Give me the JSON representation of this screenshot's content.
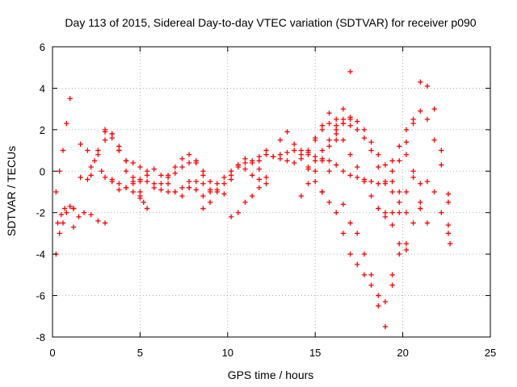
{
  "chart_data": {
    "type": "scatter",
    "title": "Day 113 of 2015, Sidereal Day-to-day VTEC variation (SDTVAR) for receiver p090",
    "xlabel": "GPS time / hours",
    "ylabel": "SDTVAR / TECUs",
    "xlim": [
      0,
      25
    ],
    "ylim": [
      -8,
      6
    ],
    "xticks": [
      "0",
      "5",
      "10",
      "15",
      "20",
      "25"
    ],
    "yticks": [
      "-8",
      "-6",
      "-4",
      "-2",
      "0",
      "2",
      "4",
      "6"
    ],
    "grid": true,
    "legend": "none",
    "marker": "+",
    "color": "#ff0000",
    "series": [
      {
        "x": [
          0.2,
          0.4,
          0.6,
          0.8,
          1.0
        ],
        "y": [
          -1.0,
          0.0,
          1.0,
          2.3,
          3.5
        ]
      },
      {
        "x": [
          0.2,
          0.4,
          0.6,
          0.8,
          1.2
        ],
        "y": [
          -4.0,
          -3.0,
          -2.5,
          -2.0,
          -1.8
        ]
      },
      {
        "x": [
          0.3,
          0.5,
          0.7,
          1.0,
          1.2
        ],
        "y": [
          -2.5,
          -2.1,
          -1.8,
          -1.7,
          -1.8
        ]
      },
      {
        "x": [
          1.2,
          1.5,
          1.8,
          2.2,
          2.6,
          3.0
        ],
        "y": [
          -2.7,
          -2.2,
          -2.0,
          -2.1,
          -2.4,
          -2.5
        ]
      },
      {
        "x": [
          1.6,
          2.0,
          2.4,
          2.8,
          3.0,
          3.4,
          3.8,
          4.2,
          4.6,
          5.0,
          5.2
        ],
        "y": [
          1.3,
          1.0,
          0.5,
          0.0,
          -0.3,
          -0.4,
          -0.6,
          -0.8,
          -1.0,
          -1.3,
          -1.5
        ]
      },
      {
        "x": [
          1.6,
          2.0,
          2.2
        ],
        "y": [
          -0.3,
          -0.4,
          -0.2
        ]
      },
      {
        "x": [
          2.2,
          2.6,
          3.0,
          3.4,
          3.8,
          4.2,
          4.6,
          5.0
        ],
        "y": [
          0.2,
          0.8,
          1.5,
          1.8,
          1.2,
          0.5,
          -0.3,
          -1.0
        ]
      },
      {
        "x": [
          2.6,
          3.0,
          3.4,
          3.8,
          4.2,
          4.6,
          5.0,
          5.4
        ],
        "y": [
          1.0,
          2.0,
          1.8,
          1.0,
          0.0,
          -0.5,
          -1.2,
          -1.8
        ]
      },
      {
        "x": [
          3.0,
          3.4,
          3.8,
          4.2,
          4.6,
          5.0,
          5.4,
          5.8,
          6.2,
          6.6,
          7.0,
          7.4,
          7.8
        ],
        "y": [
          1.9,
          1.6,
          1.0,
          0.5,
          0.4,
          0.2,
          -0.2,
          -0.6,
          -0.9,
          -1.0,
          -1.0,
          -0.8,
          -0.5
        ]
      },
      {
        "x": [
          3.4,
          3.8,
          4.2,
          4.6,
          5.0,
          5.4,
          5.8,
          6.2,
          6.6,
          7.0,
          7.4,
          7.8
        ],
        "y": [
          -0.5,
          -0.9,
          -0.8,
          -0.6,
          -0.4,
          -0.5,
          -0.8,
          -0.6,
          -0.3,
          -0.1,
          0.2,
          0.4
        ]
      },
      {
        "x": [
          5.0,
          5.4,
          5.8,
          6.2,
          6.6,
          7.0,
          7.4,
          7.8,
          8.2,
          8.6,
          9.0
        ],
        "y": [
          -0.5,
          0.0,
          0.1,
          -0.2,
          -0.6,
          -1.0,
          -1.2,
          -0.8,
          -0.5,
          -0.6,
          -0.9
        ]
      },
      {
        "x": [
          6.6,
          7.0,
          7.4,
          7.8,
          8.2,
          8.6
        ],
        "y": [
          -0.2,
          0.2,
          0.6,
          0.8,
          0.5,
          -0.2
        ]
      },
      {
        "x": [
          8.2,
          8.6,
          9.0,
          9.4,
          9.8,
          10.2,
          10.6,
          11.0,
          11.4,
          11.8
        ],
        "y": [
          0.4,
          0.0,
          -0.5,
          -0.9,
          -1.1,
          -0.4,
          0.3,
          0.6,
          0.4,
          0.1
        ]
      },
      {
        "x": [
          7.8,
          8.2,
          8.6,
          9.0,
          9.4,
          9.8,
          10.2,
          10.6,
          11.0,
          11.4,
          11.8,
          12.2
        ],
        "y": [
          -0.8,
          -0.9,
          -1.2,
          -1.0,
          -0.6,
          -0.3,
          0.0,
          0.3,
          0.4,
          0.5,
          0.7,
          1.0
        ]
      },
      {
        "x": [
          8.6,
          9.0,
          9.4,
          9.8,
          10.2,
          10.6,
          11.0,
          11.4,
          11.8,
          12.2
        ],
        "y": [
          -1.8,
          -1.5,
          -1.0,
          -0.6,
          -0.2,
          0.2,
          0.1,
          -0.2,
          -0.4,
          -0.6
        ]
      },
      {
        "x": [
          10.2,
          10.6,
          11.0,
          11.4,
          11.8,
          12.2
        ],
        "y": [
          -2.2,
          -2.0,
          -1.5,
          -1.2,
          -0.8,
          -0.3
        ]
      },
      {
        "x": [
          11.8,
          12.2,
          12.6,
          13.0,
          13.4,
          13.8,
          14.2,
          14.6,
          15.0,
          15.4,
          15.8,
          16.2,
          16.6,
          17.0,
          17.4,
          17.8,
          18.2,
          18.6,
          19.0,
          19.4
        ],
        "y": [
          0.5,
          0.8,
          0.7,
          0.8,
          0.9,
          1.0,
          1.0,
          0.9,
          0.7,
          0.6,
          0.5,
          0.3,
          0.0,
          -0.2,
          -0.3,
          -0.4,
          -0.5,
          -0.6,
          -0.6,
          -0.5
        ]
      },
      {
        "x": [
          12.6,
          13.0,
          13.4,
          13.8,
          14.2,
          14.6,
          15.0,
          15.4
        ],
        "y": [
          0.7,
          1.5,
          1.9,
          1.3,
          0.8,
          0.2,
          -0.5,
          -1.0
        ]
      },
      {
        "x": [
          13.0,
          13.4,
          13.8,
          14.2,
          14.6,
          15.0,
          15.4,
          15.8,
          16.2,
          16.6,
          17.0
        ],
        "y": [
          0.6,
          0.5,
          0.4,
          0.6,
          1.0,
          1.6,
          2.0,
          2.3,
          2.5,
          2.5,
          2.2
        ]
      },
      {
        "x": [
          14.2,
          14.6,
          15.0,
          15.4,
          15.8,
          16.2,
          16.6,
          17.0
        ],
        "y": [
          -1.2,
          -0.6,
          0.0,
          0.5,
          1.2,
          1.8,
          2.3,
          2.6
        ]
      },
      {
        "x": [
          14.6,
          15.0,
          15.4,
          15.8,
          16.2,
          16.6,
          17.0,
          17.4,
          17.8,
          18.2,
          18.6,
          19.0,
          19.4,
          19.8,
          20.2,
          20.6,
          21.0,
          21.4,
          21.8,
          22.2,
          22.6
        ],
        "y": [
          0.1,
          0.5,
          1.0,
          1.5,
          2.0,
          2.3,
          2.5,
          2.4,
          2.0,
          1.4,
          0.8,
          0.3,
          0.0,
          0.5,
          1.4,
          2.3,
          2.9,
          2.5,
          1.5,
          0.3,
          -1.1
        ]
      },
      {
        "x": [
          15.4,
          15.8,
          16.2,
          16.6,
          17.0
        ],
        "y": [
          -1.0,
          0.0,
          1.5,
          3.0,
          4.8
        ]
      },
      {
        "x": [
          14.6,
          15.0,
          15.4,
          15.8,
          16.2,
          16.6,
          17.0,
          17.4,
          17.8,
          18.2,
          18.6,
          19.0,
          19.4,
          19.8,
          20.2,
          20.6,
          21.0,
          21.4,
          21.8,
          22.2,
          22.6
        ],
        "y": [
          0.8,
          1.5,
          2.2,
          2.8,
          2.2,
          1.5,
          0.8,
          0.2,
          -0.5,
          -1.2,
          -1.8,
          -2.2,
          -2.0,
          -1.0,
          0.8,
          2.5,
          4.3,
          4.1,
          3.0,
          1.0,
          -1.5
        ]
      },
      {
        "x": [
          15.4,
          15.8,
          16.2,
          16.6,
          17.0,
          17.4,
          17.8,
          18.2,
          18.6,
          19.0,
          19.4,
          19.8,
          20.2,
          20.6,
          21.0
        ],
        "y": [
          -1.0,
          -1.5,
          -2.0,
          -3.0,
          -4.0,
          -4.5,
          -5.0,
          -5.5,
          -6.0,
          -6.3,
          -5.5,
          -4.0,
          -3.5,
          -2.5,
          -1.5
        ]
      },
      {
        "x": [
          16.6,
          17.0,
          17.4,
          17.8,
          18.2,
          18.6,
          19.0,
          19.4,
          19.8,
          20.2
        ],
        "y": [
          -1.6,
          -2.5,
          -3.0,
          -4.0,
          -5.0,
          -6.5,
          -7.5,
          -5.0,
          -3.5,
          -3.8
        ]
      },
      {
        "x": [
          17.4,
          17.8,
          18.2,
          18.6,
          19.0,
          19.4,
          19.8,
          20.2
        ],
        "y": [
          2.0,
          1.6,
          1.0,
          0.2,
          -0.5,
          -1.0,
          -1.5,
          -2.0
        ]
      },
      {
        "x": [
          19.0,
          19.4,
          19.8,
          20.2,
          20.6,
          21.0,
          21.4,
          21.8,
          22.2,
          22.6
        ],
        "y": [
          -2.0,
          -2.6,
          -2.0,
          -1.0,
          -0.3,
          -0.6,
          -0.5,
          -1.0,
          -2.0,
          -2.6
        ]
      },
      {
        "x": [
          19.4,
          19.8,
          20.2,
          20.6,
          21.0,
          21.4
        ],
        "y": [
          0.5,
          1.2,
          2.0,
          0.0,
          -1.8,
          -2.5
        ]
      },
      {
        "x": [
          22.6,
          22.7
        ],
        "y": [
          -3.0,
          -3.5
        ]
      }
    ]
  }
}
